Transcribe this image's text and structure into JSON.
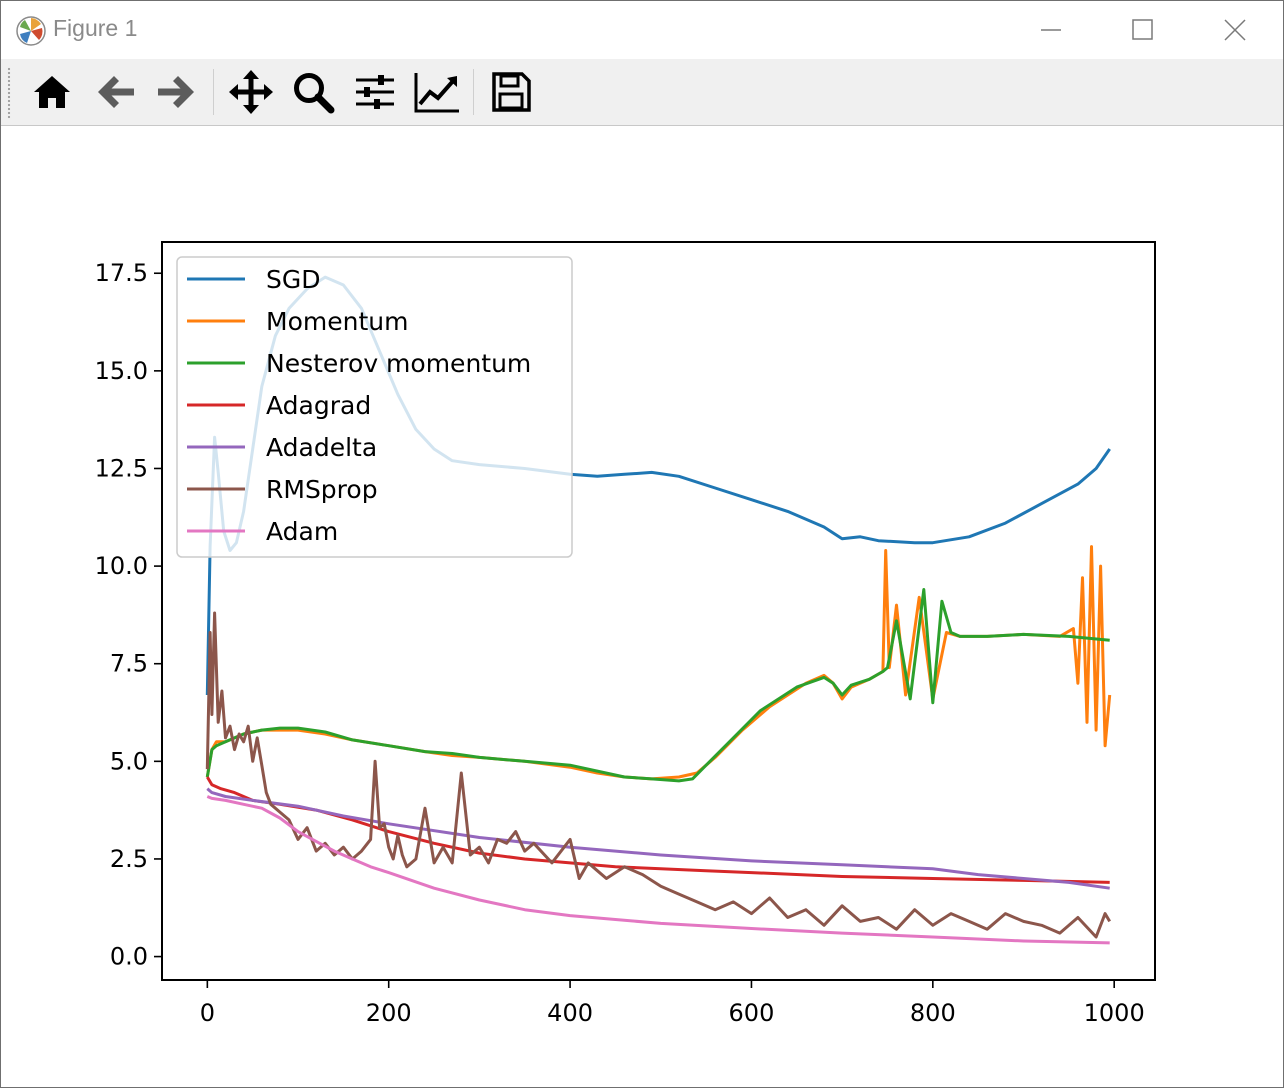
{
  "window": {
    "title": "Figure 1",
    "icons": {
      "app": "matplotlib-icon",
      "minimize": "minimize-icon",
      "maximize": "maximize-icon",
      "close": "close-icon"
    }
  },
  "toolbar": {
    "buttons": [
      {
        "name": "home",
        "icon": "home-icon"
      },
      {
        "name": "back",
        "icon": "back-arrow-icon"
      },
      {
        "name": "forward",
        "icon": "forward-arrow-icon"
      },
      {
        "name": "pan",
        "icon": "move-icon"
      },
      {
        "name": "zoom",
        "icon": "zoom-icon"
      },
      {
        "name": "subplots",
        "icon": "sliders-icon"
      },
      {
        "name": "customize",
        "icon": "line-chart-icon"
      },
      {
        "name": "save",
        "icon": "save-icon"
      }
    ]
  },
  "chart_data": {
    "type": "line",
    "title": "",
    "xlabel": "",
    "ylabel": "",
    "xlim": [
      -50,
      1045
    ],
    "ylim": [
      -0.6,
      18.3
    ],
    "xticks": [
      "0",
      "200",
      "400",
      "600",
      "800",
      "1000"
    ],
    "yticks": [
      "0.0",
      "2.5",
      "5.0",
      "7.5",
      "10.0",
      "12.5",
      "15.0",
      "17.5"
    ],
    "grid": false,
    "legend_position": "upper-left",
    "series": [
      {
        "name": "SGD",
        "color": "#1f77b4",
        "x": [
          0,
          3,
          8,
          12,
          18,
          25,
          32,
          40,
          50,
          60,
          75,
          90,
          110,
          130,
          150,
          170,
          190,
          210,
          230,
          250,
          270,
          300,
          350,
          400,
          430,
          460,
          490,
          520,
          560,
          600,
          640,
          680,
          700,
          720,
          740,
          780,
          800,
          840,
          880,
          920,
          960,
          980,
          995
        ],
        "y": [
          6.7,
          10.5,
          13.3,
          12.4,
          10.9,
          10.4,
          10.6,
          11.4,
          13.0,
          14.6,
          15.9,
          16.6,
          17.1,
          17.4,
          17.2,
          16.6,
          15.5,
          14.4,
          13.5,
          13.0,
          12.7,
          12.6,
          12.5,
          12.35,
          12.3,
          12.35,
          12.4,
          12.3,
          12.0,
          11.7,
          11.4,
          11.0,
          10.7,
          10.75,
          10.65,
          10.6,
          10.6,
          10.75,
          11.1,
          11.6,
          12.1,
          12.5,
          13.0
        ]
      },
      {
        "name": "Momentum",
        "color": "#ff7f0e",
        "x": [
          0,
          5,
          10,
          20,
          40,
          60,
          80,
          100,
          130,
          160,
          200,
          240,
          270,
          300,
          350,
          400,
          430,
          460,
          490,
          520,
          540,
          560,
          590,
          620,
          660,
          680,
          690,
          700,
          710,
          730,
          745,
          748,
          752,
          760,
          770,
          785,
          800,
          815,
          830,
          860,
          900,
          940,
          955,
          960,
          965,
          970,
          975,
          980,
          985,
          990,
          995
        ],
        "y": [
          4.6,
          5.3,
          5.5,
          5.5,
          5.7,
          5.8,
          5.8,
          5.8,
          5.7,
          5.55,
          5.4,
          5.25,
          5.15,
          5.1,
          5.0,
          4.85,
          4.7,
          4.6,
          4.55,
          4.6,
          4.7,
          5.1,
          5.8,
          6.4,
          7.0,
          7.2,
          7.0,
          6.6,
          6.9,
          7.1,
          7.3,
          10.4,
          7.4,
          9.0,
          6.7,
          9.2,
          6.6,
          8.3,
          8.2,
          8.2,
          8.25,
          8.2,
          8.4,
          7.0,
          9.7,
          6.0,
          10.5,
          5.8,
          10.0,
          5.4,
          6.7
        ]
      },
      {
        "name": "Nesterov momentum",
        "color": "#2ca02c",
        "x": [
          0,
          5,
          10,
          20,
          40,
          60,
          80,
          100,
          130,
          160,
          200,
          240,
          270,
          300,
          350,
          400,
          430,
          460,
          490,
          520,
          535,
          550,
          580,
          610,
          650,
          680,
          690,
          700,
          710,
          730,
          745,
          750,
          760,
          775,
          790,
          800,
          810,
          820,
          830,
          860,
          900,
          950,
          995
        ],
        "y": [
          4.6,
          5.3,
          5.4,
          5.5,
          5.7,
          5.8,
          5.85,
          5.85,
          5.75,
          5.55,
          5.4,
          5.25,
          5.2,
          5.1,
          5.0,
          4.9,
          4.75,
          4.6,
          4.55,
          4.5,
          4.55,
          4.9,
          5.6,
          6.3,
          6.9,
          7.15,
          7.0,
          6.7,
          6.95,
          7.1,
          7.3,
          7.4,
          8.6,
          6.6,
          9.4,
          6.5,
          9.1,
          8.3,
          8.2,
          8.2,
          8.25,
          8.2,
          8.1
        ]
      },
      {
        "name": "Adagrad",
        "color": "#d62728",
        "x": [
          0,
          5,
          15,
          30,
          50,
          80,
          120,
          160,
          200,
          250,
          300,
          350,
          400,
          450,
          500,
          550,
          600,
          700,
          800,
          900,
          995
        ],
        "y": [
          4.6,
          4.4,
          4.3,
          4.2,
          4.0,
          3.9,
          3.75,
          3.5,
          3.2,
          2.9,
          2.65,
          2.5,
          2.4,
          2.3,
          2.25,
          2.2,
          2.15,
          2.05,
          2.0,
          1.95,
          1.9
        ]
      },
      {
        "name": "Adadelta",
        "color": "#9467bd",
        "x": [
          0,
          5,
          20,
          50,
          100,
          150,
          200,
          300,
          400,
          500,
          600,
          700,
          800,
          850,
          900,
          950,
          995
        ],
        "y": [
          4.3,
          4.2,
          4.1,
          4.0,
          3.85,
          3.6,
          3.4,
          3.05,
          2.8,
          2.6,
          2.45,
          2.35,
          2.25,
          2.1,
          2.0,
          1.9,
          1.75
        ]
      },
      {
        "name": "RMSprop",
        "color": "#8c564b",
        "x": [
          0,
          3,
          5,
          8,
          12,
          16,
          20,
          25,
          30,
          35,
          40,
          45,
          50,
          55,
          60,
          65,
          70,
          80,
          90,
          100,
          110,
          120,
          130,
          140,
          150,
          160,
          170,
          180,
          185,
          190,
          195,
          200,
          205,
          210,
          215,
          220,
          230,
          240,
          250,
          260,
          270,
          280,
          290,
          300,
          310,
          320,
          330,
          340,
          350,
          360,
          380,
          400,
          410,
          420,
          430,
          440,
          460,
          480,
          500,
          520,
          540,
          560,
          580,
          600,
          620,
          640,
          660,
          680,
          700,
          720,
          740,
          760,
          780,
          800,
          820,
          840,
          860,
          880,
          900,
          920,
          940,
          960,
          980,
          990,
          995
        ],
        "y": [
          4.8,
          8.3,
          6.2,
          8.8,
          6.0,
          6.8,
          5.6,
          5.9,
          5.3,
          5.7,
          5.5,
          5.9,
          5.0,
          5.6,
          4.9,
          4.2,
          3.9,
          3.7,
          3.5,
          3.0,
          3.3,
          2.7,
          2.9,
          2.6,
          2.8,
          2.5,
          2.7,
          3.0,
          5.0,
          3.3,
          3.4,
          2.8,
          2.5,
          3.1,
          2.6,
          2.3,
          2.5,
          3.8,
          2.4,
          2.8,
          2.4,
          4.7,
          2.6,
          2.8,
          2.4,
          3.0,
          2.9,
          3.2,
          2.7,
          2.9,
          2.4,
          3.0,
          2.0,
          2.4,
          2.2,
          2.0,
          2.3,
          2.1,
          1.8,
          1.6,
          1.4,
          1.2,
          1.4,
          1.1,
          1.5,
          1.0,
          1.2,
          0.8,
          1.3,
          0.9,
          1.0,
          0.7,
          1.2,
          0.8,
          1.1,
          0.9,
          0.7,
          1.1,
          0.9,
          0.8,
          0.6,
          1.0,
          0.5,
          1.1,
          0.9
        ]
      },
      {
        "name": "Adam",
        "color": "#e377c2",
        "x": [
          0,
          5,
          20,
          40,
          60,
          80,
          100,
          120,
          140,
          160,
          180,
          200,
          250,
          300,
          350,
          400,
          450,
          500,
          600,
          700,
          800,
          900,
          995
        ],
        "y": [
          4.1,
          4.05,
          4.0,
          3.9,
          3.8,
          3.55,
          3.2,
          2.95,
          2.7,
          2.5,
          2.3,
          2.15,
          1.75,
          1.45,
          1.2,
          1.05,
          0.95,
          0.85,
          0.72,
          0.6,
          0.5,
          0.4,
          0.35
        ]
      }
    ]
  }
}
